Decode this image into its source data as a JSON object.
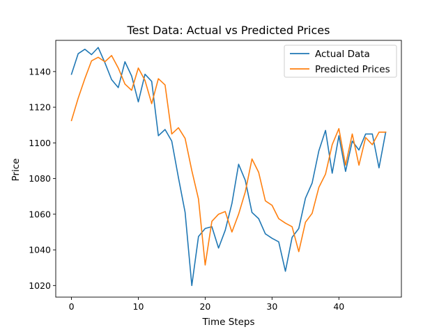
{
  "chart_data": {
    "type": "line",
    "title": "Test Data: Actual vs Predicted Prices",
    "xlabel": "Time Steps",
    "ylabel": "Price",
    "xlim": [
      -2.35,
      49.35
    ],
    "ylim": [
      1013.5,
      1157.5
    ],
    "xticks": [
      0,
      10,
      20,
      30,
      40
    ],
    "yticks": [
      1020,
      1040,
      1060,
      1080,
      1100,
      1120,
      1140
    ],
    "grid": false,
    "legend_position": "top-right",
    "series": [
      {
        "name": "Actual Data",
        "color": "#1f77b4",
        "values": [
          1138.5,
          1150.0,
          1152.5,
          1149.5,
          1153.5,
          1145.0,
          1135.5,
          1131.0,
          1145.5,
          1137.5,
          1123.0,
          1138.5,
          1134.5,
          1104.0,
          1107.5,
          1101.0,
          1080.5,
          1061.0,
          1020.0,
          1047.5,
          1052.0,
          1053.0,
          1041.0,
          1051.0,
          1066.0,
          1088.0,
          1079.0,
          1061.0,
          1057.5,
          1049.0,
          1046.5,
          1044.5,
          1028.0,
          1047.0,
          1052.0,
          1069.0,
          1077.5,
          1095.5,
          1107.0,
          1083.0,
          1104.0,
          1084.0,
          1101.0,
          1096.0,
          1105.0,
          1105.0,
          1086.0,
          1106.0
        ]
      },
      {
        "name": "Predicted Prices",
        "color": "#ff7f0e",
        "values": [
          1112.5,
          1125.0,
          1136.0,
          1146.0,
          1148.0,
          1145.5,
          1149.0,
          1142.0,
          1133.0,
          1129.5,
          1142.0,
          1135.0,
          1122.0,
          1136.0,
          1132.5,
          1105.0,
          1108.5,
          1102.5,
          1084.5,
          1068.5,
          1031.5,
          1056.0,
          1060.0,
          1061.5,
          1050.0,
          1060.0,
          1072.5,
          1091.0,
          1083.5,
          1067.5,
          1065.0,
          1057.5,
          1055.0,
          1053.0,
          1039.0,
          1055.5,
          1060.5,
          1075.0,
          1082.5,
          1099.0,
          1108.0,
          1087.5,
          1105.0,
          1087.5,
          1103.0,
          1099.0,
          1106.0,
          1106.0
        ]
      }
    ]
  }
}
